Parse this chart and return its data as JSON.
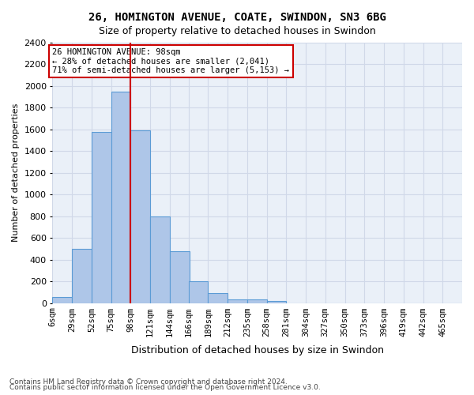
{
  "title1": "26, HOMINGTON AVENUE, COATE, SWINDON, SN3 6BG",
  "title2": "Size of property relative to detached houses in Swindon",
  "xlabel": "Distribution of detached houses by size in Swindon",
  "ylabel": "Number of detached properties",
  "footer1": "Contains HM Land Registry data © Crown copyright and database right 2024.",
  "footer2": "Contains public sector information licensed under the Open Government Licence v3.0.",
  "annotation_line1": "26 HOMINGTON AVENUE: 98sqm",
  "annotation_line2": "← 28% of detached houses are smaller (2,041)",
  "annotation_line3": "71% of semi-detached houses are larger (5,153) →",
  "bar_color": "#aec6e8",
  "bar_edge_color": "#5b9bd5",
  "property_line_x": 98,
  "categories": [
    "6sqm",
    "29sqm",
    "52sqm",
    "75sqm",
    "98sqm",
    "121sqm",
    "144sqm",
    "166sqm",
    "189sqm",
    "212sqm",
    "235sqm",
    "258sqm",
    "281sqm",
    "304sqm",
    "327sqm",
    "350sqm",
    "373sqm",
    "396sqm",
    "419sqm",
    "442sqm",
    "465sqm"
  ],
  "bin_edges": [
    6,
    29,
    52,
    75,
    98,
    121,
    144,
    166,
    189,
    212,
    235,
    258,
    281,
    304,
    327,
    350,
    373,
    396,
    419,
    442,
    465
  ],
  "values": [
    55,
    500,
    1575,
    1950,
    1590,
    800,
    475,
    200,
    90,
    35,
    30,
    20,
    0,
    0,
    0,
    0,
    0,
    0,
    0,
    0,
    0
  ],
  "ylim": [
    0,
    2400
  ],
  "yticks": [
    0,
    200,
    400,
    600,
    800,
    1000,
    1200,
    1400,
    1600,
    1800,
    2000,
    2200,
    2400
  ],
  "grid_color": "#d0d8e8",
  "background_color": "#eaf0f8",
  "red_line_color": "#cc0000",
  "annotation_box_color": "#cc0000"
}
